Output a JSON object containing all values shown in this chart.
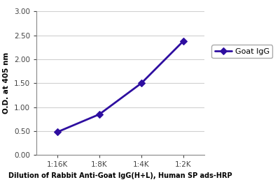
{
  "x_labels": [
    "1:16K",
    "1:8K",
    "1:4K",
    "1:2K"
  ],
  "x_values": [
    1,
    2,
    3,
    4
  ],
  "y_values": [
    0.48,
    0.85,
    1.5,
    2.38
  ],
  "line_color": "#2E0EA0",
  "marker": "D",
  "marker_size": 5,
  "line_width": 2.0,
  "ylabel": "O.D. at 405 nm",
  "xlabel": "Dilution of Rabbit Anti-Goat IgG(H+L), Human SP ads-HRP",
  "ylim": [
    0.0,
    3.0
  ],
  "yticks": [
    0.0,
    0.5,
    1.0,
    1.5,
    2.0,
    2.5,
    3.0
  ],
  "legend_label": "Goat IgG",
  "background_color": "#ffffff",
  "grid_color": "#d0d0d0",
  "xlabel_fontsize": 7.0,
  "ylabel_fontsize": 7.5,
  "tick_fontsize": 7.5,
  "legend_fontsize": 8
}
